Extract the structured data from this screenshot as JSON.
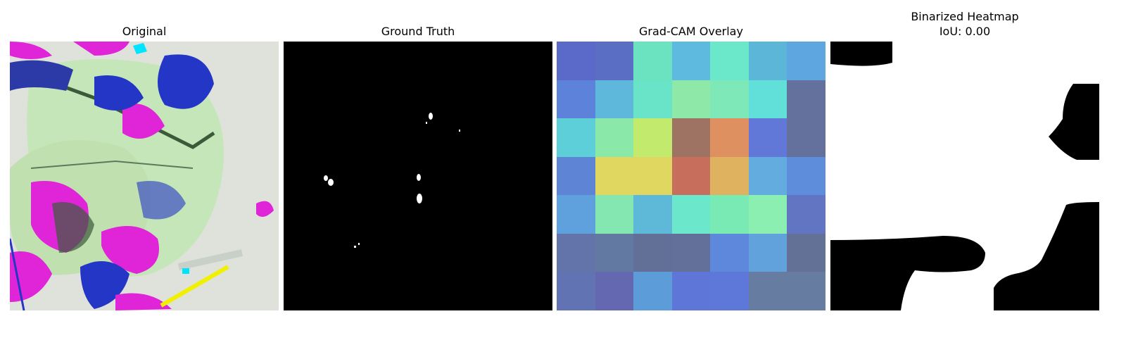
{
  "panels": [
    {
      "title": "Original"
    },
    {
      "title": "Ground Truth"
    },
    {
      "title": "Grad-CAM Overlay"
    },
    {
      "title": "Binarized Heatmap",
      "subtitle": "IoU: 0.00"
    }
  ],
  "gradcam_grid": [
    [
      "#5b6ac9",
      "#5a6ec3",
      "#6be3c0",
      "#5fbadf",
      "#6ae8c9",
      "#5cb6d8",
      "#5ea6e0"
    ],
    [
      "#5d82d9",
      "#5eb8dc",
      "#6ae4c8",
      "#8ee9a8",
      "#7fe8b9",
      "#60e0d8",
      "#63719c"
    ],
    [
      "#5dcfd8",
      "#8ae9a8",
      "#c2ea6c",
      "#9e7363",
      "#df9060",
      "#6178d9",
      "#63719c"
    ],
    [
      "#5e84d6",
      "#dfd760",
      "#dfd760",
      "#c86e5c",
      "#dfb260",
      "#62acdf",
      "#5e8ddc"
    ],
    [
      "#5ea1dc",
      "#84e7b2",
      "#5eb9d9",
      "#6be7cb",
      "#7aeab5",
      "#8aefb1",
      "#6275c3"
    ],
    [
      "#6274a9",
      "#627aa1",
      "#627097",
      "#62709a",
      "#5e88dc",
      "#62a2dc",
      "#637197"
    ],
    [
      "#6273b3",
      "#6468b0",
      "#5c9dd9",
      "#5d76d8",
      "#5e78d9",
      "#667ca0",
      "#667ca0"
    ]
  ]
}
